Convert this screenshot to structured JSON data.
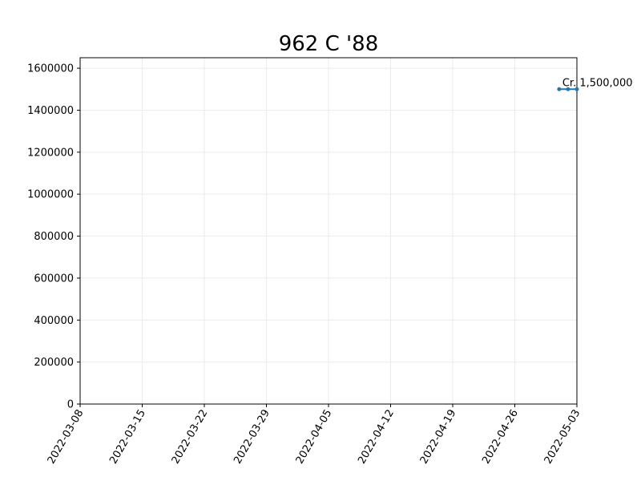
{
  "chart_data": {
    "type": "line",
    "title": "962 C '88",
    "xlabel": "",
    "ylabel": "",
    "x_tick_labels": [
      "2022-03-08",
      "2022-03-15",
      "2022-03-22",
      "2022-03-29",
      "2022-04-05",
      "2022-04-12",
      "2022-04-19",
      "2022-04-26",
      "2022-05-03"
    ],
    "y_tick_labels": [
      "0",
      "200000",
      "400000",
      "600000",
      "800000",
      "1000000",
      "1200000",
      "1400000",
      "1600000"
    ],
    "xlim": [
      "2022-03-08",
      "2022-05-03"
    ],
    "ylim": [
      0,
      1650000
    ],
    "grid": true,
    "series": [
      {
        "x": [
          "2022-05-01",
          "2022-05-02",
          "2022-05-03"
        ],
        "y": [
          1500000,
          1500000,
          1500000
        ],
        "color": "#1f77b4"
      }
    ],
    "annotations": [
      {
        "text": "Cr. 1,500,000",
        "x": "2022-05-01",
        "y": 1500000
      }
    ]
  }
}
